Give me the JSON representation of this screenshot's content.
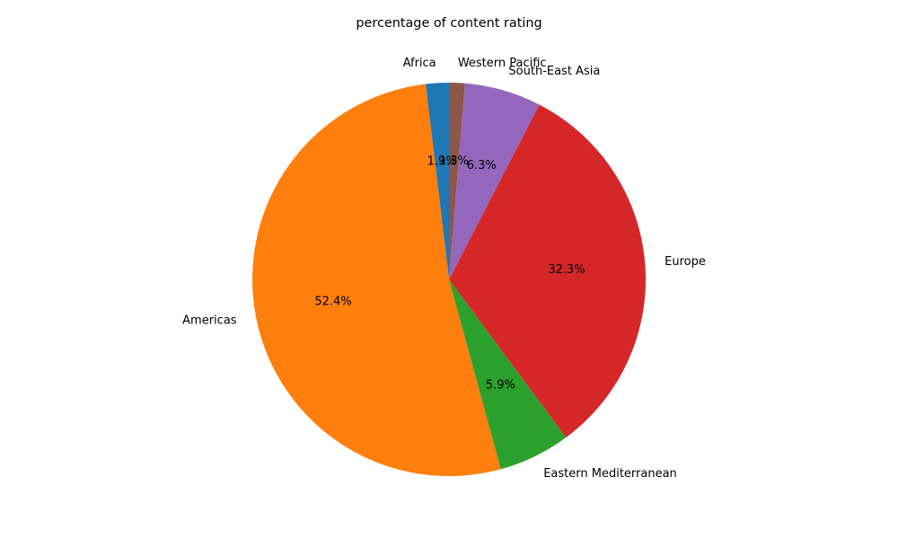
{
  "chart_data": {
    "type": "pie",
    "title": "percentage of content rating",
    "categories": [
      "Africa",
      "Americas",
      "Eastern Mediterranean",
      "Europe",
      "South-East Asia",
      "Western Pacific"
    ],
    "values": [
      1.9,
      52.4,
      5.9,
      32.3,
      6.3,
      1.3
    ],
    "value_labels": [
      "1.9%",
      "52.4%",
      "5.9%",
      "32.3%",
      "6.3%",
      "1.3%"
    ],
    "colors": [
      "#1f77b4",
      "#ff7f0e",
      "#2ca02c",
      "#d62728",
      "#9467bd",
      "#8c564b"
    ],
    "start_angle_deg": 90,
    "direction": "counterclockwise",
    "legend": "none"
  }
}
